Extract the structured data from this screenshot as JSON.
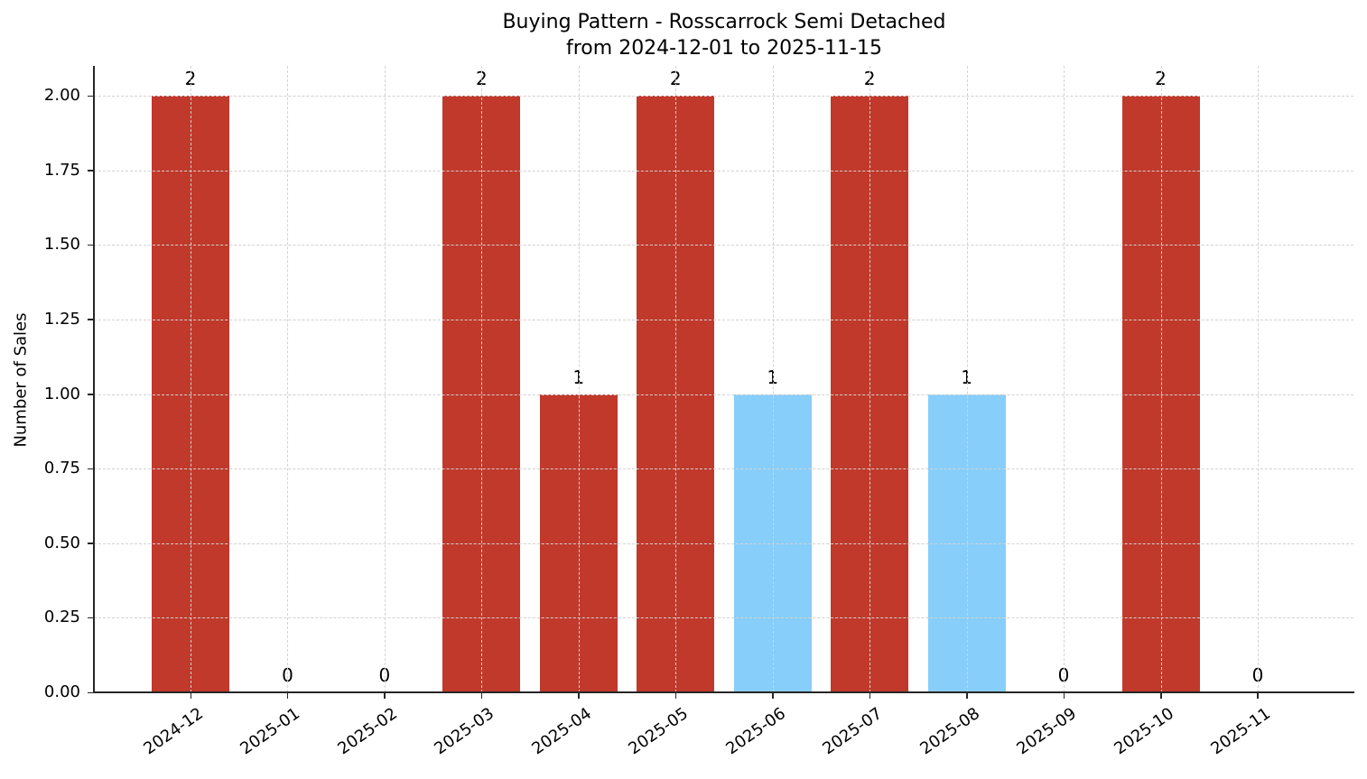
{
  "chart_data": {
    "type": "bar",
    "title": "Buying Pattern - Rosscarrock Semi Detached",
    "subtitle": "from 2024-12-01 to 2025-11-15",
    "xlabel": "",
    "ylabel": "Number of Sales",
    "ylim": [
      0,
      2.1
    ],
    "yticks": [
      "0.00",
      "0.25",
      "0.50",
      "0.75",
      "1.00",
      "1.25",
      "1.50",
      "1.75",
      "2.00"
    ],
    "grid": true,
    "legend": null,
    "categories": [
      "2024-12",
      "2025-01",
      "2025-02",
      "2025-03",
      "2025-04",
      "2025-05",
      "2025-06",
      "2025-07",
      "2025-08",
      "2025-09",
      "2025-10",
      "2025-11"
    ],
    "values": [
      2,
      0,
      0,
      2,
      1,
      2,
      1,
      2,
      1,
      0,
      2,
      0
    ],
    "bar_colors": [
      "#c0392b",
      "#c0392b",
      "#c0392b",
      "#c0392b",
      "#c0392b",
      "#c0392b",
      "#87cefa",
      "#c0392b",
      "#87cefa",
      "#c0392b",
      "#c0392b",
      "#c0392b"
    ],
    "data_labels": [
      "2",
      "0",
      "0",
      "2",
      "1",
      "2",
      "1",
      "2",
      "1",
      "0",
      "2",
      "0"
    ]
  },
  "colors": {
    "primary_bar": "#c0392b",
    "highlight_bar": "#87cefa",
    "grid": "#d3d3d3",
    "axis": "#262626"
  }
}
